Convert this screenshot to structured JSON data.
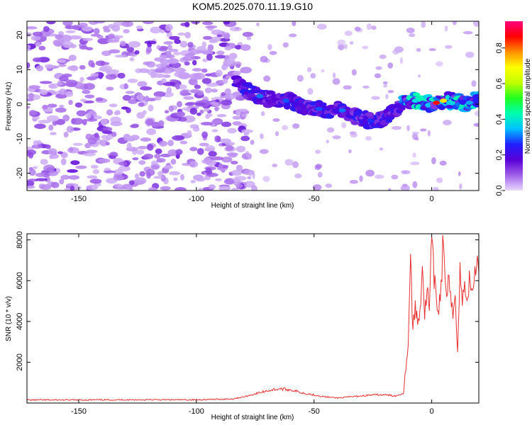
{
  "title": "KOM5.2025.070.11.19.G10",
  "chart_data": [
    {
      "type": "heatmap",
      "xlabel": "Height of straight line (km)",
      "ylabel": "Frequency (Hz)",
      "xlim": [
        -172,
        20
      ],
      "ylim": [
        -25,
        24
      ],
      "xticks": [
        -150,
        -100,
        -50,
        0
      ],
      "yticks": [
        -20,
        -10,
        0,
        10,
        20
      ],
      "colorbar": {
        "label": "Normalized spectral amplitude",
        "range": [
          0,
          0.95
        ],
        "ticks": [
          "0.0",
          "0.2",
          "0.4",
          "0.6",
          "0.8"
        ],
        "colors": [
          "#e8d8ff",
          "#a060e8",
          "#5a00d8",
          "#2020ff",
          "#00c0ff",
          "#00ffb0",
          "#20ff20",
          "#c0ff00",
          "#ffff00",
          "#ff9000",
          "#ff0000",
          "#ff0080"
        ]
      },
      "noise_region_xmax": -83,
      "signal_trace": {
        "x": [
          -83,
          -78,
          -72,
          -66,
          -60,
          -55,
          -50,
          -45,
          -40,
          -35,
          -30,
          -25,
          -20,
          -15,
          -10,
          -5,
          0,
          5,
          10,
          15,
          20
        ],
        "y": [
          6,
          4,
          2,
          1,
          1,
          -1,
          -1,
          -2,
          -1,
          -3,
          -4,
          -5,
          -4,
          -1,
          1,
          1,
          0,
          1,
          1,
          0,
          2
        ]
      }
    },
    {
      "type": "line",
      "xlabel": "Height of straight line (km)",
      "ylabel": "SNR (10 * v/v)",
      "xlim": [
        -172,
        20
      ],
      "ylim": [
        0,
        8300
      ],
      "xticks": [
        -150,
        -100,
        -50,
        0
      ],
      "yticks": [
        2000,
        4000,
        6000,
        8000
      ],
      "line_color": "#e83030",
      "series": [
        {
          "x": [
            -172,
            -150,
            -130,
            -100,
            -85,
            -80,
            -75,
            -70,
            -65,
            -60,
            -55,
            -50,
            -45,
            -40,
            -35,
            -30,
            -25,
            -20,
            -15,
            -12,
            -10,
            -9,
            -8,
            -7,
            -6,
            -5,
            -4,
            -3,
            -2,
            -1,
            0,
            1,
            2,
            3,
            4,
            5,
            6,
            7,
            8,
            9,
            10,
            11,
            12,
            13,
            14,
            15,
            16,
            17,
            18,
            19,
            20
          ],
          "y": [
            150,
            150,
            160,
            160,
            200,
            300,
            450,
            600,
            700,
            650,
            500,
            400,
            300,
            250,
            300,
            350,
            400,
            400,
            350,
            500,
            3000,
            7200,
            3500,
            4800,
            3900,
            4500,
            7000,
            4200,
            5600,
            4500,
            8000,
            6000,
            5000,
            4600,
            5800,
            8300,
            5200,
            6000,
            5000,
            4200,
            5600,
            2500,
            6500,
            4900,
            5800,
            5300,
            5900,
            5400,
            6100,
            7000,
            6400
          ]
        }
      ]
    }
  ]
}
